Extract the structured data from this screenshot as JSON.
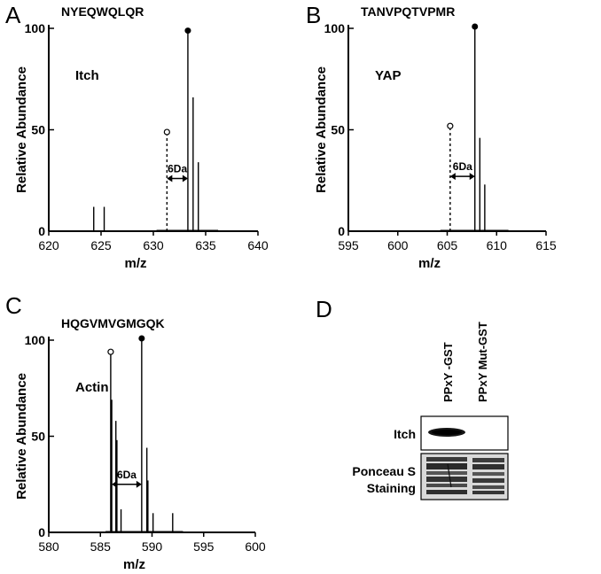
{
  "panels": [
    {
      "letter": "A"
    },
    {
      "letter": "B"
    },
    {
      "letter": "C"
    },
    {
      "letter": "D"
    }
  ],
  "chart_data": [
    {
      "type": "bar",
      "panel": "A",
      "title": "NYEQWQLQR",
      "label": "Itch",
      "xlabel": "m/z",
      "ylabel": "Relative Abundance",
      "xlim": [
        620,
        640
      ],
      "ylim": [
        0,
        100
      ],
      "xticks": [
        620,
        625,
        630,
        635,
        640
      ],
      "yticks": [
        0,
        50,
        100
      ],
      "peaks": [
        {
          "x": 624.3,
          "y": 12
        },
        {
          "x": 625.3,
          "y": 12
        },
        {
          "x": 631.3,
          "y": 48,
          "dashed": true,
          "marker": "open"
        },
        {
          "x": 633.3,
          "y": 98,
          "marker": "filled"
        },
        {
          "x": 633.8,
          "y": 66
        },
        {
          "x": 634.3,
          "y": 34
        }
      ],
      "annotation": {
        "text": "6Da",
        "x1": 631.3,
        "x2": 633.3,
        "y": 26
      },
      "baseline": [
        630.3,
        636.2
      ]
    },
    {
      "type": "bar",
      "panel": "B",
      "title": "TANVPQTVPMR",
      "label": "YAP",
      "xlabel": "m/z",
      "ylabel": "Relative Abundance",
      "xlim": [
        595,
        615
      ],
      "ylim": [
        0,
        100
      ],
      "xticks": [
        595,
        600,
        605,
        610,
        615
      ],
      "yticks": [
        0,
        50,
        100
      ],
      "peaks": [
        {
          "x": 605.3,
          "y": 51,
          "dashed": true,
          "marker": "open"
        },
        {
          "x": 607.8,
          "y": 100,
          "marker": "filled"
        },
        {
          "x": 608.3,
          "y": 46
        },
        {
          "x": 608.8,
          "y": 23
        }
      ],
      "annotation": {
        "text": "6Da",
        "x1": 605.3,
        "x2": 607.8,
        "y": 27
      },
      "baseline": [
        604.3,
        611.2
      ]
    },
    {
      "type": "bar",
      "panel": "C",
      "title": "HQGVMVGMGQK",
      "label": "Actin",
      "xlabel": "m/z",
      "ylabel": "Relative Abundance",
      "xlim": [
        580,
        600
      ],
      "ylim": [
        0,
        100
      ],
      "xticks": [
        580,
        585,
        590,
        595,
        600
      ],
      "yticks": [
        0,
        50,
        100
      ],
      "peaks": [
        {
          "x": 586.0,
          "y": 93,
          "marker": "open"
        },
        {
          "x": 586.1,
          "y": 69
        },
        {
          "x": 586.5,
          "y": 58
        },
        {
          "x": 586.6,
          "y": 48
        },
        {
          "x": 587.0,
          "y": 12
        },
        {
          "x": 589.0,
          "y": 100,
          "marker": "filled"
        },
        {
          "x": 589.5,
          "y": 44
        },
        {
          "x": 589.6,
          "y": 27
        },
        {
          "x": 590.1,
          "y": 10
        },
        {
          "x": 592.0,
          "y": 10
        }
      ],
      "annotation": {
        "text": "6Da",
        "x1": 586.1,
        "x2": 589.0,
        "y": 25
      },
      "baseline": [
        585.5,
        593.0
      ]
    }
  ],
  "blot": {
    "lanes": [
      "PPxY -GST",
      "PPxY Mut-GST"
    ],
    "rows": [
      {
        "label": "Itch"
      },
      {
        "label_line1": "Ponceau S",
        "label_line2": "Staining"
      }
    ]
  }
}
